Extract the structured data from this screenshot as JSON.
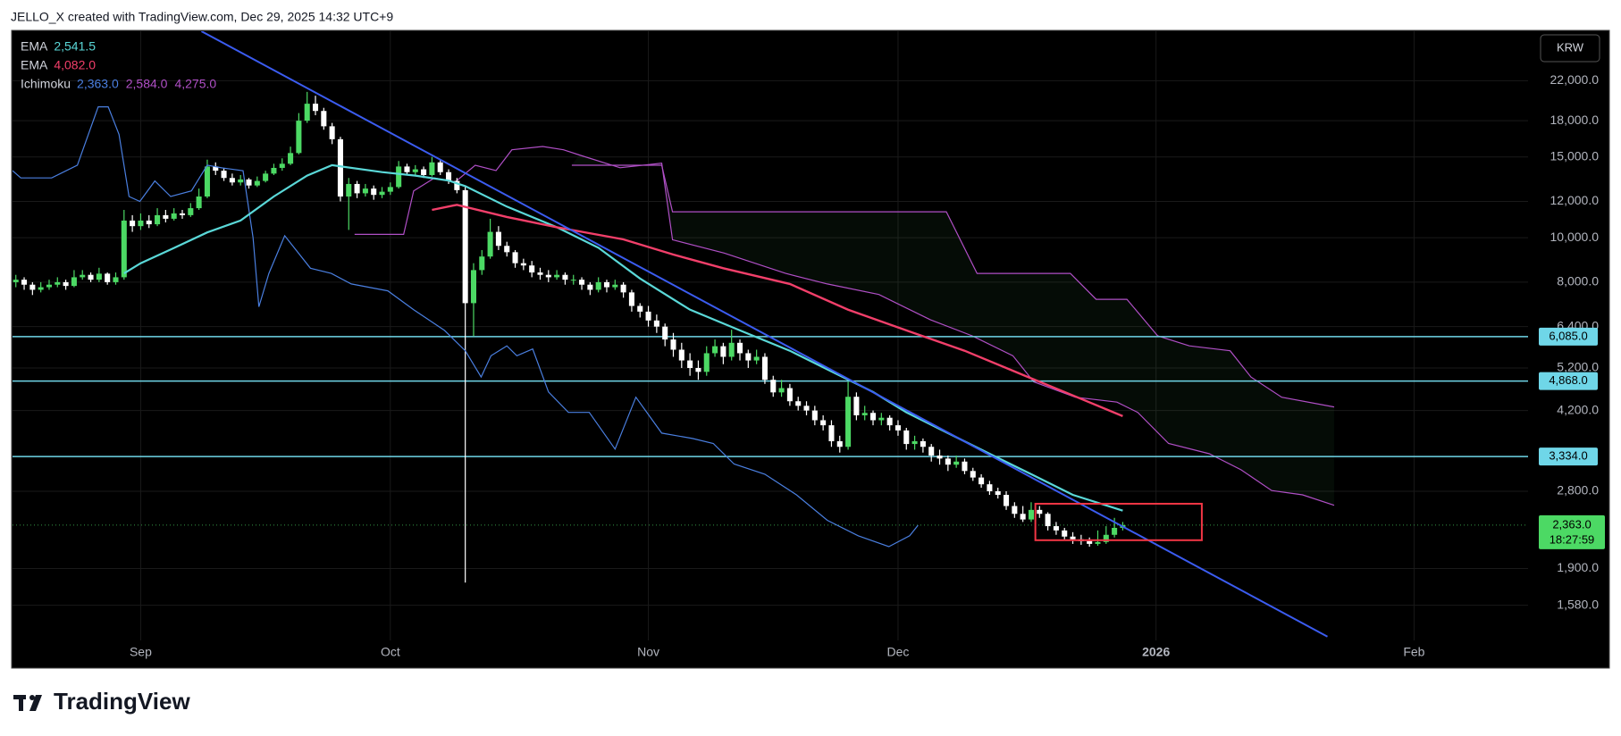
{
  "header": "JELLO_X created with TradingView.com, Dec 29, 2025 14:32 UTC+9",
  "footer": "TradingView",
  "currency": "KRW",
  "chart_data": {
    "type": "candlestick",
    "log_scale": true,
    "grid": true,
    "up_color": "#4cd964",
    "down_color": "#ffffff",
    "xlim": [
      -15.4,
      166.7
    ],
    "xticks": [
      {
        "value": 0,
        "label": "Sep"
      },
      {
        "value": 30,
        "label": "Oct"
      },
      {
        "value": 61,
        "label": "Nov"
      },
      {
        "value": 91,
        "label": "Dec"
      },
      {
        "value": 122,
        "label": "2026"
      },
      {
        "value": 153,
        "label": "Feb"
      }
    ],
    "ylim": [
      1324,
      28200
    ],
    "yticks": [
      {
        "value": 1580,
        "label": "1,580.0"
      },
      {
        "value": 1900,
        "label": "1,900.0"
      },
      {
        "value": 2800,
        "label": "2,800.0"
      },
      {
        "value": 4200,
        "label": "4,200.0"
      },
      {
        "value": 5200,
        "label": "5,200.0"
      },
      {
        "value": 6400,
        "label": "6,400.0"
      },
      {
        "value": 8000,
        "label": "8,000.0"
      },
      {
        "value": 10000,
        "label": "10,000.0"
      },
      {
        "value": 12000,
        "label": "12,000.0"
      },
      {
        "value": 15000,
        "label": "15,000.0"
      },
      {
        "value": 18000,
        "label": "18,000.0"
      },
      {
        "value": 22000,
        "label": "22,000.0"
      }
    ],
    "x": [
      -15,
      -14,
      -13,
      -12,
      -11,
      -10,
      -9,
      -8,
      -7,
      -6,
      -5,
      -4,
      -3,
      -2,
      -1,
      0,
      1,
      2,
      3,
      4,
      5,
      6,
      7,
      8,
      9,
      10,
      11,
      12,
      13,
      14,
      15,
      16,
      17,
      18,
      19,
      20,
      21,
      22,
      23,
      24,
      25,
      26,
      27,
      28,
      29,
      30,
      31,
      32,
      33,
      34,
      35,
      36,
      37,
      38,
      39,
      40,
      41,
      42,
      43,
      44,
      45,
      46,
      47,
      48,
      49,
      50,
      51,
      52,
      53,
      54,
      55,
      56,
      57,
      58,
      59,
      60,
      61,
      62,
      63,
      64,
      65,
      66,
      67,
      68,
      69,
      70,
      71,
      72,
      73,
      74,
      75,
      76,
      77,
      78,
      79,
      80,
      81,
      82,
      83,
      84,
      85,
      86,
      87,
      88,
      89,
      90,
      91,
      92,
      93,
      94,
      95,
      96,
      97,
      98,
      99,
      100,
      101,
      102,
      103,
      104,
      105,
      106,
      107,
      108,
      109,
      110,
      111,
      112,
      113,
      114,
      115,
      116,
      117,
      118
    ],
    "ohlc": [
      [
        8000,
        8300,
        7800,
        8100
      ],
      [
        8100,
        8200,
        7700,
        7900
      ],
      [
        7900,
        8000,
        7500,
        7700
      ],
      [
        7700,
        8000,
        7600,
        7800
      ],
      [
        7800,
        8100,
        7700,
        7900
      ],
      [
        7900,
        8200,
        7800,
        8000
      ],
      [
        8000,
        8100,
        7700,
        7850
      ],
      [
        7850,
        8500,
        7800,
        8200
      ],
      [
        8200,
        8500,
        8100,
        8300
      ],
      [
        8300,
        8400,
        8000,
        8100
      ],
      [
        8100,
        8600,
        8000,
        8350
      ],
      [
        8350,
        8400,
        7900,
        8000
      ],
      [
        8000,
        8400,
        7900,
        8200
      ],
      [
        8200,
        11500,
        8100,
        10900
      ],
      [
        10900,
        11200,
        10300,
        10600
      ],
      [
        10600,
        11300,
        10400,
        10900
      ],
      [
        10900,
        11200,
        10500,
        10700
      ],
      [
        10700,
        11600,
        10600,
        11200
      ],
      [
        11200,
        11500,
        10800,
        11000
      ],
      [
        11000,
        11600,
        10900,
        11300
      ],
      [
        11300,
        11500,
        11000,
        11200
      ],
      [
        11200,
        11900,
        11100,
        11600
      ],
      [
        11600,
        12800,
        11500,
        12300
      ],
      [
        12300,
        14800,
        12200,
        14300
      ],
      [
        14300,
        14600,
        13700,
        14000
      ],
      [
        14000,
        14200,
        13300,
        13500
      ],
      [
        13500,
        13800,
        13000,
        13200
      ],
      [
        13200,
        13700,
        13000,
        13400
      ],
      [
        13400,
        13500,
        12800,
        13000
      ],
      [
        13000,
        13600,
        12900,
        13300
      ],
      [
        13300,
        14000,
        13200,
        13800
      ],
      [
        13800,
        14500,
        13700,
        14200
      ],
      [
        14200,
        14900,
        14000,
        14500
      ],
      [
        14500,
        15800,
        14400,
        15300
      ],
      [
        15300,
        18700,
        15200,
        18000
      ],
      [
        18000,
        20800,
        17800,
        19600
      ],
      [
        19600,
        20400,
        18500,
        18900
      ],
      [
        18900,
        19200,
        17200,
        17500
      ],
      [
        17500,
        17800,
        16000,
        16400
      ],
      [
        16400,
        16600,
        12000,
        12300
      ],
      [
        12300,
        13500,
        10400,
        13100
      ],
      [
        13100,
        13300,
        12200,
        12500
      ],
      [
        12500,
        13100,
        12300,
        12800
      ],
      [
        12800,
        13000,
        12100,
        12400
      ],
      [
        12400,
        12900,
        12200,
        12600
      ],
      [
        12600,
        13200,
        12400,
        12900
      ],
      [
        12900,
        14700,
        12800,
        14300
      ],
      [
        14300,
        14500,
        13700,
        13900
      ],
      [
        13900,
        14400,
        13700,
        14100
      ],
      [
        14100,
        14300,
        13500,
        13700
      ],
      [
        13700,
        15000,
        13600,
        14600
      ],
      [
        14600,
        14800,
        13700,
        13900
      ],
      [
        13900,
        14100,
        13100,
        13300
      ],
      [
        13300,
        13500,
        12500,
        12700
      ],
      [
        12700,
        13000,
        1770,
        7200
      ],
      [
        7200,
        8800,
        6100,
        8500
      ],
      [
        8500,
        9400,
        8300,
        9100
      ],
      [
        9100,
        11000,
        9000,
        10300
      ],
      [
        10300,
        10600,
        9400,
        9600
      ],
      [
        9600,
        9800,
        9100,
        9300
      ],
      [
        9300,
        9400,
        8600,
        8800
      ],
      [
        8800,
        9000,
        8500,
        8700
      ],
      [
        8700,
        8900,
        8200,
        8400
      ],
      [
        8400,
        8600,
        8100,
        8300
      ],
      [
        8300,
        8500,
        8000,
        8200
      ],
      [
        8200,
        8500,
        8100,
        8300
      ],
      [
        8300,
        8400,
        7900,
        8100
      ],
      [
        8100,
        8300,
        7900,
        8100
      ],
      [
        8100,
        8200,
        7700,
        7900
      ],
      [
        7900,
        8000,
        7500,
        7700
      ],
      [
        7700,
        8200,
        7600,
        8000
      ],
      [
        8000,
        8100,
        7600,
        7800
      ],
      [
        7800,
        8100,
        7700,
        7900
      ],
      [
        7900,
        8000,
        7400,
        7600
      ],
      [
        7600,
        7700,
        6900,
        7100
      ],
      [
        7100,
        7200,
        6700,
        6900
      ],
      [
        6900,
        7100,
        6400,
        6600
      ],
      [
        6600,
        6800,
        6200,
        6400
      ],
      [
        6400,
        6500,
        5800,
        6000
      ],
      [
        6000,
        6200,
        5500,
        5700
      ],
      [
        5700,
        5900,
        5200,
        5400
      ],
      [
        5400,
        5600,
        5000,
        5200
      ],
      [
        5200,
        5400,
        4900,
        5100
      ],
      [
        5100,
        5800,
        5000,
        5600
      ],
      [
        5600,
        6000,
        5500,
        5800
      ],
      [
        5800,
        5900,
        5300,
        5500
      ],
      [
        5500,
        6300,
        5400,
        5900
      ],
      [
        5900,
        6000,
        5400,
        5600
      ],
      [
        5600,
        5700,
        5200,
        5400
      ],
      [
        5400,
        5700,
        5300,
        5500
      ],
      [
        5500,
        5600,
        4800,
        4900
      ],
      [
        4900,
        5000,
        4500,
        4600
      ],
      [
        4600,
        4900,
        4500,
        4700
      ],
      [
        4700,
        4800,
        4300,
        4400
      ],
      [
        4400,
        4500,
        4200,
        4300
      ],
      [
        4300,
        4400,
        4100,
        4200
      ],
      [
        4200,
        4300,
        3900,
        4000
      ],
      [
        4000,
        4100,
        3800,
        3900
      ],
      [
        3900,
        4000,
        3500,
        3600
      ],
      [
        3600,
        3700,
        3400,
        3500
      ],
      [
        3500,
        4850,
        3450,
        4500
      ],
      [
        4500,
        4600,
        4000,
        4100
      ],
      [
        4100,
        4300,
        4000,
        4150
      ],
      [
        4150,
        4200,
        3900,
        4000
      ],
      [
        4000,
        4150,
        3900,
        4050
      ],
      [
        4050,
        4100,
        3800,
        3900
      ],
      [
        3900,
        4000,
        3700,
        3800
      ],
      [
        3800,
        3850,
        3450,
        3550
      ],
      [
        3550,
        3700,
        3450,
        3600
      ],
      [
        3600,
        3650,
        3400,
        3500
      ],
      [
        3500,
        3550,
        3250,
        3350
      ],
      [
        3350,
        3450,
        3200,
        3300
      ],
      [
        3300,
        3350,
        3100,
        3200
      ],
      [
        3200,
        3350,
        3150,
        3250
      ],
      [
        3250,
        3300,
        3050,
        3100
      ],
      [
        3100,
        3150,
        2950,
        3000
      ],
      [
        3000,
        3050,
        2850,
        2900
      ],
      [
        2900,
        2950,
        2750,
        2800
      ],
      [
        2800,
        2850,
        2700,
        2750
      ],
      [
        2750,
        2800,
        2550,
        2600
      ],
      [
        2600,
        2650,
        2450,
        2500
      ],
      [
        2500,
        2600,
        2400,
        2430
      ],
      [
        2430,
        2650,
        2400,
        2550
      ],
      [
        2550,
        2600,
        2450,
        2500
      ],
      [
        2500,
        2520,
        2300,
        2350
      ],
      [
        2350,
        2400,
        2250,
        2300
      ],
      [
        2300,
        2330,
        2200,
        2230
      ],
      [
        2230,
        2280,
        2150,
        2200
      ],
      [
        2200,
        2250,
        2140,
        2180
      ],
      [
        2180,
        2220,
        2120,
        2150
      ],
      [
        2150,
        2300,
        2130,
        2170
      ],
      [
        2170,
        2350,
        2150,
        2250
      ],
      [
        2250,
        2450,
        2220,
        2330
      ],
      [
        2330,
        2400,
        2300,
        2363
      ]
    ],
    "ichimoku_cloud": {
      "color": "rgba(76,175,80,0.07)",
      "span_a": {
        "color": "#b04fc6",
        "x": [
          25.7,
          31.6,
          32.8,
          35.3,
          37.8,
          40.2,
          42.7,
          44.6,
          48.3,
          50.8,
          52.7,
          57.6,
          62.6,
          63.9,
          70.1,
          77.5,
          82.5,
          88.7,
          94.9,
          99.9,
          104.8,
          107.3,
          112.3,
          117.3,
          119.8,
          123.5,
          128.4,
          132.2,
          135.9,
          139.6,
          143.4
        ],
        "values": [
          10170,
          10170,
          12650,
          13500,
          13240,
          14390,
          14010,
          15550,
          15810,
          15550,
          15150,
          14210,
          14540,
          9900,
          9260,
          8360,
          7930,
          7520,
          6620,
          6110,
          5530,
          4850,
          4490,
          4380,
          4160,
          3560,
          3380,
          3120,
          2810,
          2750,
          2610
        ]
      },
      "span_b": {
        "color": "#b04fc6",
        "x": [
          51.8,
          62.6,
          63.9,
          96.8,
          100.5,
          111.7,
          114.8,
          118.5,
          122.2,
          126,
          130.9,
          133.4,
          137.1,
          143.4
        ],
        "values": [
          14390,
          14390,
          11390,
          11390,
          8360,
          8360,
          7340,
          7340,
          6110,
          5810,
          5670,
          4970,
          4490,
          4275
        ]
      }
    },
    "lines": [
      {
        "color": "#4a7fe0",
        "width": 1.2,
        "x": [
          -15.4,
          -14.4,
          -10.7,
          -7.6,
          -5.1,
          -3.9,
          -2.6,
          -1.4,
          -0.1,
          1.7,
          3.6,
          6.1,
          8,
          9.8,
          12.3,
          13.5,
          14.2,
          15.4,
          17.3,
          20.4,
          22.9,
          25.3,
          29.7,
          32.8,
          36.5,
          39,
          40.9,
          42.1,
          44,
          45.2,
          47.1,
          49,
          51.4,
          53.9,
          57,
          59.5,
          62.6,
          66.3,
          68.8,
          71.3,
          75,
          78.8,
          82.5,
          86.2,
          89.9,
          92.4,
          93.4
        ],
        "values": [
          14000,
          13500,
          13500,
          14400,
          19300,
          19300,
          16800,
          12300,
          12000,
          13300,
          12300,
          12650,
          14400,
          14200,
          14000,
          10000,
          7070,
          8360,
          10100,
          8580,
          8360,
          7930,
          7660,
          6970,
          6280,
          5670,
          4970,
          5530,
          5810,
          5530,
          5720,
          4610,
          4160,
          4160,
          3460,
          4490,
          3750,
          3650,
          3560,
          3210,
          3050,
          2750,
          2420,
          2240,
          2120,
          2240,
          2360
        ]
      },
      {
        "color": "#5ad8d8",
        "width": 2.2,
        "x": [
          -2,
          0,
          4,
          8,
          12,
          16,
          20,
          23,
          29,
          33,
          37,
          39,
          44,
          50,
          55,
          60,
          66,
          72,
          78,
          83,
          88,
          92,
          97,
          102,
          107,
          112,
          118
        ],
        "values": [
          8360,
          8800,
          9500,
          10270,
          10900,
          12300,
          13660,
          14400,
          13900,
          13660,
          13320,
          12960,
          11690,
          10540,
          9510,
          8150,
          6970,
          6280,
          5670,
          5110,
          4610,
          4160,
          3750,
          3380,
          3050,
          2750,
          2540
        ]
      },
      {
        "color": "#f23f6a",
        "width": 2.4,
        "x": [
          35,
          38,
          44,
          50,
          58,
          64,
          70,
          78,
          85,
          92,
          99,
          105,
          111,
          118
        ],
        "values": [
          11500,
          11800,
          11100,
          10540,
          9920,
          9190,
          8580,
          7930,
          6970,
          6280,
          5670,
          5110,
          4610,
          4082
        ]
      },
      {
        "color": "#3b5cf0",
        "width": 2,
        "x": [
          7.3,
          142.6
        ],
        "values": [
          28200,
          1350
        ]
      }
    ],
    "level_color": "#6fd6e8",
    "levels": [
      {
        "value": 6085,
        "label": "6,085.0"
      },
      {
        "value": 4868,
        "label": "4,868.0"
      },
      {
        "value": 3334,
        "label": "3,334.0"
      }
    ],
    "last_price": {
      "value": 2363,
      "label": "2,363.0",
      "countdown": "18:27:59",
      "color": "#4cd964"
    },
    "box": {
      "color": "#f23645",
      "x": [
        107.5,
        127.5
      ],
      "y": [
        2190,
        2630
      ]
    },
    "legend": [
      {
        "name": "EMA",
        "values": [
          "2,541.5"
        ],
        "colors": [
          "#5ad8d8"
        ]
      },
      {
        "name": "EMA",
        "values": [
          "4,082.0"
        ],
        "colors": [
          "#f23f6a"
        ]
      },
      {
        "name": "Ichimoku",
        "values": [
          "2,363.0",
          "2,584.0",
          "4,275.0"
        ],
        "colors": [
          "#4a7fe0",
          "#b04fc6",
          "#b04fc6"
        ]
      }
    ]
  }
}
